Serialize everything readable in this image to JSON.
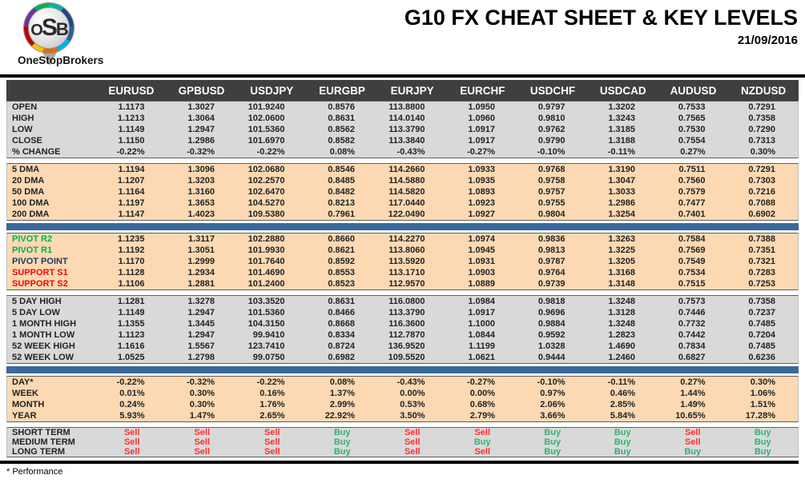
{
  "header": {
    "logo_text": "OSB",
    "brand": "OneStopBrokers",
    "title": "G10 FX CHEAT SHEET & KEY LEVELS",
    "date": "21/09/2016"
  },
  "footnote": "* Performance",
  "colors": {
    "header_bar": "#3f3f3f",
    "section_gray": "#d9d9d9",
    "section_peach": "#fcd9b3",
    "separator_blue": "#3a699b",
    "buy_green": "#2db374",
    "sell_red": "#ff2f2f",
    "pivot_green": "#00b050",
    "pivot_navy": "#1f3864",
    "support_red": "#ff0000"
  },
  "table": {
    "columns": [
      "EURUSD",
      "GPBUSD",
      "USDJPY",
      "EURGBP",
      "EURJPY",
      "EURCHF",
      "USDCHF",
      "USDCAD",
      "AUDUSD",
      "NZDUSD"
    ],
    "sections": [
      {
        "id": "ohlc",
        "bg": "gray",
        "separator_after": "gap",
        "rows": [
          {
            "label": "OPEN",
            "values": [
              "1.1173",
              "1.3027",
              "101.9240",
              "0.8576",
              "113.8800",
              "1.0950",
              "0.9797",
              "1.3202",
              "0.7533",
              "0.7291"
            ]
          },
          {
            "label": "HIGH",
            "values": [
              "1.1213",
              "1.3064",
              "102.0600",
              "0.8631",
              "114.0140",
              "1.0960",
              "0.9810",
              "1.3243",
              "0.7565",
              "0.7358"
            ]
          },
          {
            "label": "LOW",
            "values": [
              "1.1149",
              "1.2947",
              "101.5360",
              "0.8562",
              "113.3790",
              "1.0917",
              "0.9762",
              "1.3185",
              "0.7530",
              "0.7290"
            ]
          },
          {
            "label": "CLOSE",
            "values": [
              "1.1150",
              "1.2986",
              "101.6970",
              "0.8582",
              "113.3840",
              "1.0917",
              "0.9790",
              "1.3188",
              "0.7554",
              "0.7313"
            ]
          },
          {
            "label": "% CHANGE",
            "values": [
              "-0.22%",
              "-0.32%",
              "-0.22%",
              "0.08%",
              "-0.43%",
              "-0.27%",
              "-0.10%",
              "-0.11%",
              "0.27%",
              "0.30%"
            ]
          }
        ]
      },
      {
        "id": "dma",
        "bg": "peach",
        "separator_after": "blue",
        "rows": [
          {
            "label": "5 DMA",
            "values": [
              "1.1194",
              "1.3096",
              "102.0680",
              "0.8546",
              "114.2660",
              "1.0933",
              "0.9768",
              "1.3190",
              "0.7511",
              "0.7291"
            ]
          },
          {
            "label": "20 DMA",
            "values": [
              "1.1207",
              "1.3203",
              "102.2570",
              "0.8485",
              "114.5880",
              "1.0935",
              "0.9758",
              "1.3047",
              "0.7560",
              "0.7303"
            ]
          },
          {
            "label": "50 DMA",
            "values": [
              "1.1164",
              "1.3160",
              "102.6470",
              "0.8482",
              "114.5820",
              "1.0893",
              "0.9757",
              "1.3033",
              "0.7579",
              "0.7216"
            ]
          },
          {
            "label": "100 DMA",
            "values": [
              "1.1197",
              "1.3653",
              "104.5270",
              "0.8213",
              "117.0440",
              "1.0923",
              "0.9755",
              "1.2986",
              "0.7477",
              "0.7088"
            ]
          },
          {
            "label": "200 DMA",
            "values": [
              "1.1147",
              "1.4023",
              "109.5380",
              "0.7961",
              "122.0490",
              "1.0927",
              "0.9804",
              "1.3254",
              "0.7401",
              "0.6902"
            ]
          }
        ]
      },
      {
        "id": "pivots",
        "bg": "peach",
        "separator_after": "gap",
        "rows": [
          {
            "label": "PIVOT R2",
            "label_color": "green",
            "values": [
              "1.1235",
              "1.3117",
              "102.2880",
              "0.8660",
              "114.2270",
              "1.0974",
              "0.9836",
              "1.3263",
              "0.7584",
              "0.7388"
            ]
          },
          {
            "label": "PIVOT R1",
            "label_color": "green",
            "values": [
              "1.1192",
              "1.3051",
              "101.9930",
              "0.8621",
              "113.8060",
              "1.0945",
              "0.9813",
              "1.3225",
              "0.7569",
              "0.7351"
            ]
          },
          {
            "label": "PIVOT POINT",
            "label_color": "navy",
            "values": [
              "1.1170",
              "1.2999",
              "101.7640",
              "0.8592",
              "113.5920",
              "1.0931",
              "0.9787",
              "1.3205",
              "0.7549",
              "0.7321"
            ]
          },
          {
            "label": "SUPPORT S1",
            "label_color": "red",
            "values": [
              "1.1128",
              "1.2934",
              "101.4690",
              "0.8553",
              "113.1710",
              "1.0903",
              "0.9764",
              "1.3168",
              "0.7534",
              "0.7283"
            ]
          },
          {
            "label": "SUPPORT S2",
            "label_color": "red",
            "values": [
              "1.1106",
              "1.2881",
              "101.2400",
              "0.8523",
              "112.9570",
              "1.0889",
              "0.9739",
              "1.3148",
              "0.7515",
              "0.7253"
            ]
          }
        ]
      },
      {
        "id": "ranges",
        "bg": "gray",
        "separator_after": "blue",
        "rows": [
          {
            "label": "5 DAY HIGH",
            "values": [
              "1.1281",
              "1.3278",
              "103.3520",
              "0.8631",
              "116.0800",
              "1.0984",
              "0.9818",
              "1.3248",
              "0.7573",
              "0.7358"
            ]
          },
          {
            "label": "5 DAY LOW",
            "values": [
              "1.1149",
              "1.2947",
              "101.5360",
              "0.8466",
              "113.3790",
              "1.0917",
              "0.9696",
              "1.3128",
              "0.7446",
              "0.7237"
            ]
          },
          {
            "label": "1 MONTH HIGH",
            "values": [
              "1.1355",
              "1.3445",
              "104.3150",
              "0.8668",
              "116.3600",
              "1.1000",
              "0.9884",
              "1.3248",
              "0.7732",
              "0.7485"
            ]
          },
          {
            "label": "1 MONTH LOW",
            "values": [
              "1.1123",
              "1.2947",
              "99.9410",
              "0.8334",
              "112.7870",
              "1.0844",
              "0.9592",
              "1.2823",
              "0.7442",
              "0.7204"
            ]
          },
          {
            "label": "52 WEEK HIGH",
            "values": [
              "1.1616",
              "1.5567",
              "123.7410",
              "0.8724",
              "136.9520",
              "1.1199",
              "1.0328",
              "1.4690",
              "0.7834",
              "0.7485"
            ]
          },
          {
            "label": "52 WEEK LOW",
            "values": [
              "1.0525",
              "1.2798",
              "99.0750",
              "0.6982",
              "109.5520",
              "1.0621",
              "0.9444",
              "1.2460",
              "0.6827",
              "0.6236"
            ]
          }
        ]
      },
      {
        "id": "performance",
        "bg": "peach",
        "separator_after": "gap",
        "rows": [
          {
            "label": "DAY*",
            "values": [
              "-0.22%",
              "-0.32%",
              "-0.22%",
              "0.08%",
              "-0.43%",
              "-0.27%",
              "-0.10%",
              "-0.11%",
              "0.27%",
              "0.30%"
            ]
          },
          {
            "label": "WEEK",
            "values": [
              "0.01%",
              "0.30%",
              "0.16%",
              "1.37%",
              "0.00%",
              "0.00%",
              "0.97%",
              "0.46%",
              "1.44%",
              "1.06%"
            ]
          },
          {
            "label": "MONTH",
            "values": [
              "0.24%",
              "0.30%",
              "1.76%",
              "2.99%",
              "0.53%",
              "0.68%",
              "2.06%",
              "2.85%",
              "1.49%",
              "1.51%"
            ]
          },
          {
            "label": "YEAR",
            "values": [
              "5.93%",
              "1.47%",
              "2.65%",
              "22.92%",
              "3.50%",
              "2.79%",
              "3.66%",
              "5.84%",
              "10.65%",
              "17.28%"
            ]
          }
        ]
      },
      {
        "id": "signals",
        "bg": "gray",
        "rows": [
          {
            "label": "SHORT TERM",
            "values": [
              "Sell",
              "Sell",
              "Sell",
              "Buy",
              "Sell",
              "Sell",
              "Buy",
              "Buy",
              "Sell",
              "Buy"
            ]
          },
          {
            "label": "MEDIUM TERM",
            "values": [
              "Sell",
              "Sell",
              "Sell",
              "Buy",
              "Sell",
              "Buy",
              "Buy",
              "Buy",
              "Sell",
              "Buy"
            ]
          },
          {
            "label": "LONG TERM",
            "values": [
              "Sell",
              "Sell",
              "Sell",
              "Buy",
              "Sell",
              "Sell",
              "Buy",
              "Buy",
              "Buy",
              "Buy"
            ]
          }
        ]
      }
    ]
  }
}
